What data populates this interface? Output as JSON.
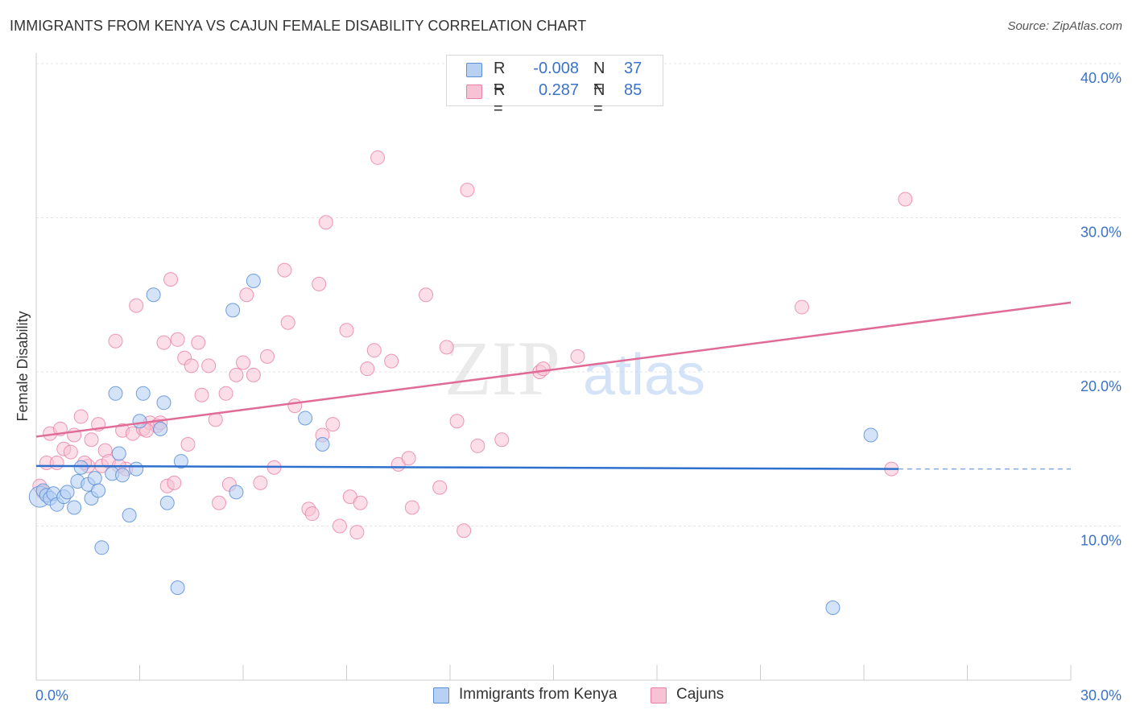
{
  "title": "IMMIGRANTS FROM KENYA VS CAJUN FEMALE DISABILITY CORRELATION CHART",
  "source": "Source: ZipAtlas.com",
  "colors": {
    "kenya": "#5b8fd9",
    "kenya_fill": "#b8d1f2",
    "kenya_line": "#2f6fce",
    "cajun": "#e97fa6",
    "cajun_fill": "#f7c3d4",
    "cajun_line": "#e06b97",
    "axis_label": "#3a73c9"
  },
  "legend": {
    "rows": [
      {
        "r_label": "R =",
        "r_value": "-0.008",
        "n_label": "N =",
        "n_value": "37"
      },
      {
        "r_label": "R =",
        "r_value": "0.287",
        "n_label": "N =",
        "n_value": "85"
      }
    ]
  },
  "bottom_legend": {
    "kenya_label": "Immigrants from Kenya",
    "cajun_label": "Cajuns"
  },
  "watermark": {
    "zip": "ZIP",
    "atlas": "atlas"
  },
  "chart_data": {
    "type": "scatter",
    "title": "IMMIGRANTS FROM KENYA VS CAJUN FEMALE DISABILITY CORRELATION CHART",
    "xlabel": "",
    "ylabel": "Female Disability",
    "xlim": [
      0,
      30
    ],
    "ylim": [
      0,
      40
    ],
    "x_tick_labels": [
      {
        "value": 0,
        "label": "0.0%"
      },
      {
        "value": 30,
        "label": "30.0%"
      }
    ],
    "y_tick_labels": [
      {
        "value": 10,
        "label": "10.0%"
      },
      {
        "value": 20,
        "label": "20.0%"
      },
      {
        "value": 30,
        "label": "30.0%"
      },
      {
        "value": 40,
        "label": "40.0%"
      }
    ],
    "series": [
      {
        "name": "Immigrants from Kenya",
        "R": -0.008,
        "N": 37,
        "trend": {
          "x0": 0,
          "y0": 13.9,
          "x1": 25,
          "y1": 13.7,
          "dash_to_x": 30,
          "dash_y": 13.7
        },
        "points": [
          [
            0.1,
            11.9
          ],
          [
            0.2,
            12.3
          ],
          [
            0.3,
            12.0
          ],
          [
            0.4,
            11.8
          ],
          [
            0.5,
            12.1
          ],
          [
            0.6,
            11.4
          ],
          [
            0.8,
            11.9
          ],
          [
            0.9,
            12.2
          ],
          [
            1.1,
            11.2
          ],
          [
            1.2,
            12.9
          ],
          [
            1.3,
            13.8
          ],
          [
            1.5,
            12.7
          ],
          [
            1.6,
            11.8
          ],
          [
            1.7,
            13.1
          ],
          [
            1.8,
            12.3
          ],
          [
            1.9,
            8.6
          ],
          [
            2.2,
            13.4
          ],
          [
            2.3,
            18.6
          ],
          [
            2.4,
            14.7
          ],
          [
            2.5,
            13.3
          ],
          [
            2.7,
            10.7
          ],
          [
            2.9,
            13.7
          ],
          [
            3.0,
            16.8
          ],
          [
            3.1,
            18.6
          ],
          [
            3.4,
            25.0
          ],
          [
            3.6,
            16.3
          ],
          [
            3.7,
            18.0
          ],
          [
            3.8,
            11.5
          ],
          [
            4.1,
            6.0
          ],
          [
            4.2,
            14.2
          ],
          [
            5.7,
            24.0
          ],
          [
            5.8,
            12.2
          ],
          [
            6.3,
            25.9
          ],
          [
            7.8,
            17.0
          ],
          [
            8.3,
            15.3
          ],
          [
            24.2,
            15.9
          ],
          [
            23.1,
            4.7
          ]
        ]
      },
      {
        "name": "Cajuns",
        "R": 0.287,
        "N": 85,
        "trend": {
          "x0": 0,
          "y0": 15.8,
          "x1": 30,
          "y1": 24.5
        },
        "points": [
          [
            0.1,
            12.6
          ],
          [
            0.2,
            12.2
          ],
          [
            0.3,
            14.1
          ],
          [
            0.4,
            16.0
          ],
          [
            0.6,
            14.1
          ],
          [
            0.7,
            16.3
          ],
          [
            0.8,
            15.0
          ],
          [
            1.0,
            14.8
          ],
          [
            1.1,
            15.9
          ],
          [
            1.3,
            17.1
          ],
          [
            1.5,
            13.9
          ],
          [
            1.6,
            15.6
          ],
          [
            1.8,
            16.6
          ],
          [
            1.9,
            13.9
          ],
          [
            2.0,
            14.9
          ],
          [
            2.1,
            14.2
          ],
          [
            2.3,
            22.0
          ],
          [
            2.5,
            16.2
          ],
          [
            2.6,
            13.7
          ],
          [
            2.8,
            16.0
          ],
          [
            2.9,
            24.3
          ],
          [
            3.1,
            16.3
          ],
          [
            3.3,
            16.7
          ],
          [
            3.5,
            16.5
          ],
          [
            3.6,
            16.7
          ],
          [
            3.7,
            21.9
          ],
          [
            3.8,
            12.6
          ],
          [
            3.9,
            26.0
          ],
          [
            4.0,
            12.8
          ],
          [
            4.1,
            22.1
          ],
          [
            4.3,
            20.9
          ],
          [
            4.4,
            15.3
          ],
          [
            4.5,
            20.4
          ],
          [
            4.7,
            21.9
          ],
          [
            4.8,
            18.5
          ],
          [
            5.0,
            20.4
          ],
          [
            5.2,
            16.9
          ],
          [
            5.3,
            11.5
          ],
          [
            5.5,
            18.6
          ],
          [
            5.6,
            12.7
          ],
          [
            5.8,
            19.8
          ],
          [
            6.0,
            20.6
          ],
          [
            6.1,
            25.0
          ],
          [
            6.3,
            19.8
          ],
          [
            6.5,
            12.8
          ],
          [
            6.7,
            21.0
          ],
          [
            6.9,
            13.8
          ],
          [
            7.2,
            26.6
          ],
          [
            7.3,
            23.2
          ],
          [
            7.5,
            17.8
          ],
          [
            7.9,
            11.1
          ],
          [
            8.0,
            10.8
          ],
          [
            8.2,
            25.7
          ],
          [
            8.3,
            15.9
          ],
          [
            8.4,
            29.7
          ],
          [
            8.6,
            16.6
          ],
          [
            8.8,
            10.0
          ],
          [
            9.0,
            22.7
          ],
          [
            9.1,
            11.9
          ],
          [
            9.3,
            9.6
          ],
          [
            9.4,
            11.5
          ],
          [
            9.6,
            20.2
          ],
          [
            9.8,
            21.4
          ],
          [
            9.9,
            33.9
          ],
          [
            10.3,
            20.7
          ],
          [
            10.5,
            14.0
          ],
          [
            10.8,
            14.4
          ],
          [
            10.9,
            11.2
          ],
          [
            11.3,
            25.0
          ],
          [
            11.7,
            12.5
          ],
          [
            11.9,
            21.6
          ],
          [
            12.2,
            16.8
          ],
          [
            12.4,
            9.7
          ],
          [
            12.5,
            31.8
          ],
          [
            12.8,
            15.2
          ],
          [
            13.5,
            15.6
          ],
          [
            14.6,
            20.0
          ],
          [
            14.7,
            20.2
          ],
          [
            15.7,
            21.0
          ],
          [
            22.2,
            24.2
          ],
          [
            24.8,
            13.7
          ],
          [
            25.2,
            31.2
          ],
          [
            1.4,
            14.1
          ],
          [
            3.2,
            16.2
          ],
          [
            2.4,
            13.9
          ]
        ]
      }
    ]
  }
}
